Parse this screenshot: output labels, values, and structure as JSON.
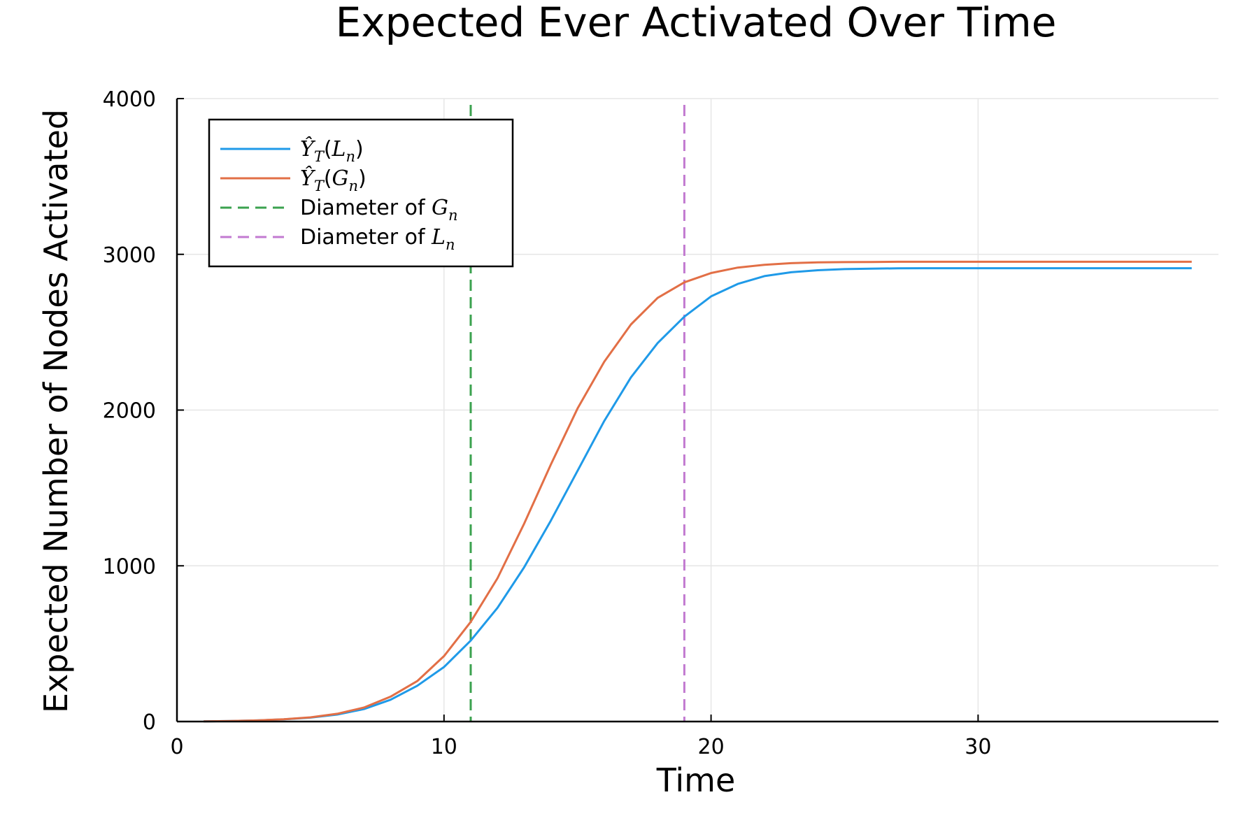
{
  "chart_data": {
    "type": "line",
    "title": "Expected Ever Activated Over Time",
    "xlabel": "Time",
    "ylabel": "Expected Number of Nodes Activated",
    "xlim": [
      0,
      39
    ],
    "ylim": [
      0,
      4000
    ],
    "x_ticks": [
      0,
      10,
      20,
      30
    ],
    "x_tick_labels": [
      "0",
      "10",
      "20",
      "30"
    ],
    "y_ticks": [
      0,
      1000,
      2000,
      3000,
      4000
    ],
    "y_tick_labels": [
      "0",
      "1000",
      "2000",
      "3000",
      "4000"
    ],
    "grid": true,
    "legend_position": "top-left",
    "series": [
      {
        "name": "Ŷ_T(L_n)",
        "color": "#1f9ae8",
        "style": "solid",
        "x": [
          1,
          2,
          3,
          4,
          5,
          6,
          7,
          8,
          9,
          10,
          11,
          12,
          13,
          14,
          15,
          16,
          17,
          18,
          19,
          20,
          21,
          22,
          23,
          24,
          25,
          26,
          27,
          28,
          29,
          30,
          31,
          32,
          33,
          34,
          35,
          36,
          37,
          38
        ],
        "values": [
          1,
          3,
          7,
          14,
          25,
          45,
          80,
          140,
          230,
          350,
          520,
          730,
          990,
          1290,
          1610,
          1930,
          2210,
          2430,
          2600,
          2730,
          2810,
          2860,
          2885,
          2898,
          2905,
          2908,
          2910,
          2911,
          2911,
          2911,
          2911,
          2911,
          2911,
          2911,
          2911,
          2911,
          2911,
          2911
        ]
      },
      {
        "name": "Ŷ_T(G_n)",
        "color": "#e26f46",
        "style": "solid",
        "x": [
          1,
          2,
          3,
          4,
          5,
          6,
          7,
          8,
          9,
          10,
          11,
          12,
          13,
          14,
          15,
          16,
          17,
          18,
          19,
          20,
          21,
          22,
          23,
          24,
          25,
          26,
          27,
          28,
          29,
          30,
          31,
          32,
          33,
          34,
          35,
          36,
          37,
          38
        ],
        "values": [
          1,
          3,
          7,
          15,
          27,
          50,
          90,
          160,
          260,
          420,
          640,
          920,
          1270,
          1650,
          2010,
          2310,
          2550,
          2720,
          2820,
          2880,
          2915,
          2933,
          2943,
          2948,
          2950,
          2951,
          2952,
          2952,
          2952,
          2952,
          2952,
          2952,
          2952,
          2952,
          2952,
          2952,
          2952,
          2952
        ]
      },
      {
        "name": "Diameter of G_n",
        "color": "#3ba24f",
        "style": "dashed",
        "type": "vline",
        "x": 11
      },
      {
        "name": "Diameter of L_n",
        "color": "#c27ad0",
        "style": "dashed",
        "type": "vline",
        "x": 19
      }
    ],
    "legend": [
      {
        "prefix": "",
        "math": "Ŷ",
        "sub": "T",
        "paren": "(",
        "math2": "L",
        "sub2": "n",
        "close": ")"
      },
      {
        "prefix": "",
        "math": "Ŷ",
        "sub": "T",
        "paren": "(",
        "math2": "G",
        "sub2": "n",
        "close": ")"
      },
      {
        "prefix": "Diameter of ",
        "math": "G",
        "sub": "n",
        "paren": "",
        "math2": "",
        "sub2": "",
        "close": ""
      },
      {
        "prefix": "Diameter of ",
        "math": "L",
        "sub": "n",
        "paren": "",
        "math2": "",
        "sub2": "",
        "close": ""
      }
    ]
  }
}
